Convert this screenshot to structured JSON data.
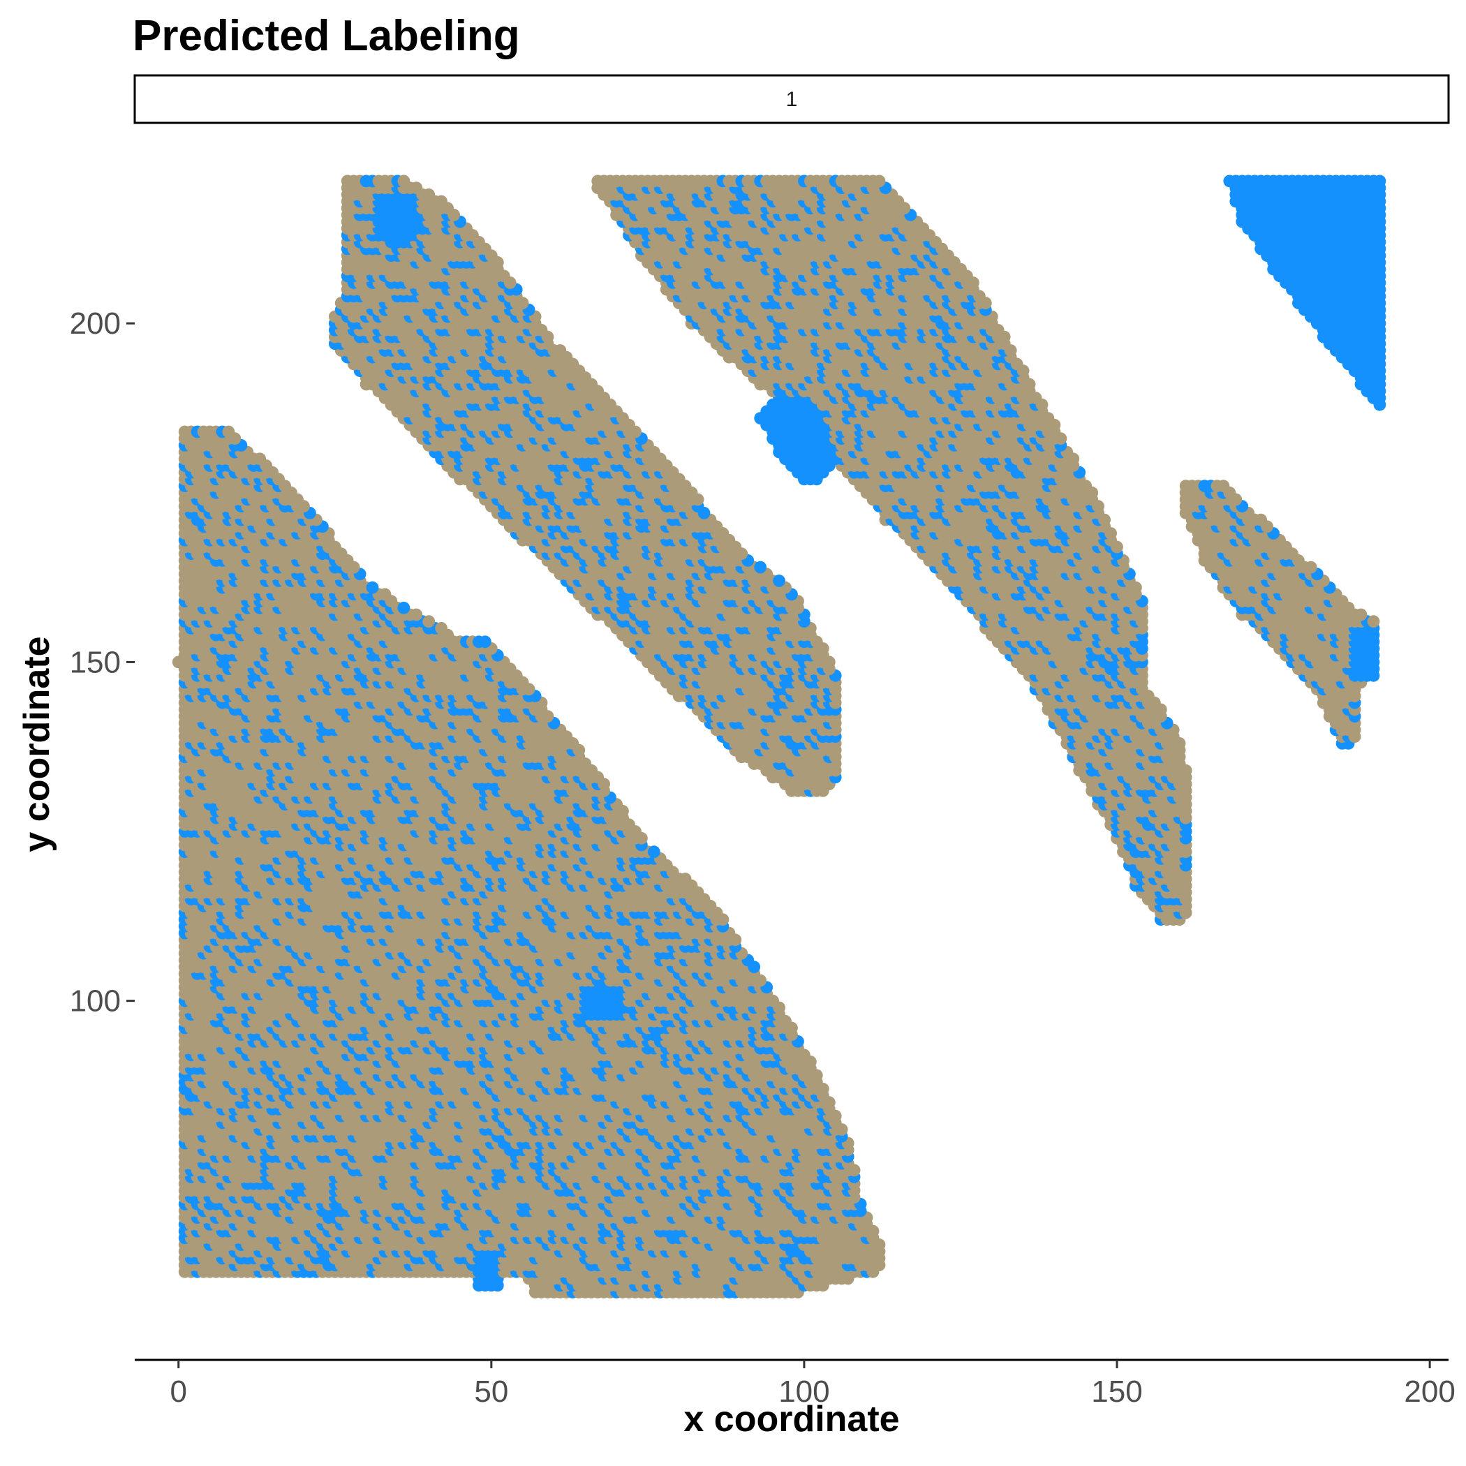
{
  "chart_data": {
    "type": "scatter",
    "title": "Predicted Labeling",
    "facet_strip": "1",
    "xlabel": "x coordinate",
    "ylabel": "y coordinate",
    "xlim": [
      -7,
      203
    ],
    "ylim": [
      47,
      223
    ],
    "x_ticks": [
      0,
      50,
      100,
      150,
      200
    ],
    "x_tick_labels": [
      "0",
      "50",
      "100",
      "150",
      "200"
    ],
    "y_ticks": [
      100,
      150,
      200
    ],
    "y_tick_labels": [
      "100",
      "150",
      "200"
    ],
    "grid": false,
    "legend": "none",
    "point_step": 1,
    "colors": {
      "base": "#ac9b78",
      "highlight": "#1591fd"
    },
    "series": [
      {
        "label_color": "base",
        "regions": [
          {
            "polygon": [
              [
                1,
                185
              ],
              [
                7,
                185
              ],
              [
                12,
                181
              ],
              [
                20,
                174
              ],
              [
                30,
                162
              ],
              [
                35,
                159
              ],
              [
                44,
                154
              ],
              [
                48,
                154
              ],
              [
                53,
                150
              ],
              [
                65,
                136
              ],
              [
                75,
                123
              ],
              [
                85,
                115
              ],
              [
                95,
                101
              ],
              [
                103,
                88
              ],
              [
                107,
                80
              ],
              [
                109,
                71
              ],
              [
                113,
                62
              ],
              [
                112,
                60
              ],
              [
                100,
                57
              ],
              [
                75,
                57
              ],
              [
                57,
                57
              ],
              [
                55,
                60
              ],
              [
                24,
                60
              ],
              [
                10,
                60
              ],
              [
                1,
                60
              ],
              [
                1,
                75
              ],
              [
                0,
                150
              ],
              [
                1,
                185
              ]
            ]
          },
          {
            "polygon": [
              [
                28,
                222
              ],
              [
                35,
                222
              ],
              [
                43,
                218
              ],
              [
                52,
                208
              ],
              [
                60,
                197
              ],
              [
                72,
                186
              ],
              [
                84,
                173
              ],
              [
                92,
                165
              ],
              [
                98,
                161
              ],
              [
                102,
                154
              ],
              [
                106,
                147
              ],
              [
                106,
                134
              ],
              [
                104,
                131
              ],
              [
                98,
                131
              ],
              [
                90,
                136
              ],
              [
                80,
                145
              ],
              [
                67,
                157
              ],
              [
                55,
                168
              ],
              [
                45,
                177
              ],
              [
                37,
                185
              ],
              [
                30,
                191
              ],
              [
                25,
                197
              ],
              [
                25,
                201
              ],
              [
                27,
                205
              ],
              [
                27,
                222
              ]
            ]
          },
          {
            "polygon": [
              [
                67,
                222
              ],
              [
                112,
                222
              ],
              [
                120,
                214
              ],
              [
                128,
                205
              ],
              [
                137,
                190
              ],
              [
                145,
                177
              ],
              [
                151,
                166
              ],
              [
                155,
                158
              ],
              [
                155,
                146
              ],
              [
                160,
                139
              ],
              [
                162,
                130
              ],
              [
                162,
                117
              ],
              [
                161,
                112
              ],
              [
                157,
                112
              ],
              [
                153,
                117
              ],
              [
                150,
                124
              ],
              [
                144,
                134
              ],
              [
                137,
                146
              ],
              [
                129,
                155
              ],
              [
                121,
                164
              ],
              [
                113,
                171
              ],
              [
                104,
                181
              ],
              [
                98,
                187
              ],
              [
                93,
                191
              ],
              [
                88,
                195
              ],
              [
                82,
                200
              ],
              [
                74,
                210
              ],
              [
                67,
                220
              ]
            ]
          },
          {
            "polygon": [
              [
                161,
                177
              ],
              [
                166,
                177
              ],
              [
                172,
                172
              ],
              [
                180,
                165
              ],
              [
                188,
                158
              ],
              [
                192,
                156
              ],
              [
                192,
                150
              ],
              [
                189,
                146
              ],
              [
                188,
                138
              ],
              [
                186,
                137
              ],
              [
                183,
                144
              ],
              [
                178,
                150
              ],
              [
                170,
                157
              ],
              [
                164,
                165
              ],
              [
                161,
                172
              ]
            ]
          }
        ]
      },
      {
        "label_color": "highlight",
        "regions": [
          {
            "polygon": [
              [
                168,
                222
              ],
              [
                193,
                222
              ],
              [
                193,
                187
              ],
              [
                189,
                191
              ],
              [
                183,
                198
              ],
              [
                175,
                208
              ],
              [
                170,
                215
              ],
              [
                168,
                221
              ]
            ]
          },
          {
            "polygon": [
              [
                188,
                156
              ],
              [
                192,
                156
              ],
              [
                192,
                148
              ],
              [
                188,
                148
              ]
            ]
          },
          {
            "polygon": [
              [
                96,
                190
              ],
              [
                101,
                190
              ],
              [
                104,
                186
              ],
              [
                106,
                180
              ],
              [
                101,
                176
              ],
              [
                96,
                181
              ],
              [
                93,
                186
              ]
            ]
          },
          {
            "polygon": [
              [
                32,
                220
              ],
              [
                38,
                220
              ],
              [
                40,
                214
              ],
              [
                36,
                211
              ],
              [
                31,
                213
              ]
            ]
          },
          {
            "polygon": [
              [
                48,
                64
              ],
              [
                52,
                64
              ],
              [
                52,
                58
              ],
              [
                48,
                58
              ]
            ]
          },
          {
            "polygon": [
              [
                65,
                103
              ],
              [
                72,
                103
              ],
              [
                72,
                98
              ],
              [
                65,
                98
              ]
            ]
          }
        ]
      }
    ],
    "point_size": 1.1,
    "scatter_fraction": 0.2
  }
}
